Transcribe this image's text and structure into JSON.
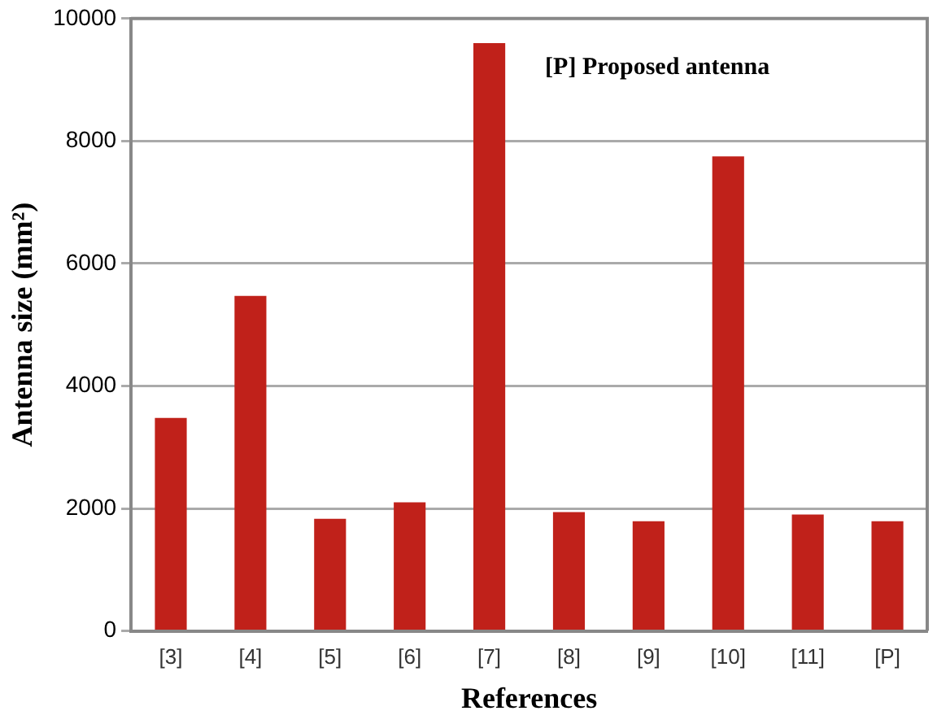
{
  "chart_data": {
    "type": "bar",
    "xlabel": "References",
    "ylabel": "Antenna size (mm²)",
    "categories": [
      "[3]",
      "[4]",
      "[5]",
      "[6]",
      "[7]",
      "[8]",
      "[9]",
      "[10]",
      "[11]",
      "[P]"
    ],
    "values": [
      3480,
      5470,
      1830,
      2100,
      9600,
      1940,
      1790,
      7750,
      1900,
      1790
    ],
    "color": "#c0211a",
    "ylim": [
      0,
      10000
    ],
    "yticks": [
      0,
      2000,
      4000,
      6000,
      8000,
      10000
    ],
    "grid": "y",
    "annotations": [
      "[P] Proposed antenna"
    ]
  }
}
